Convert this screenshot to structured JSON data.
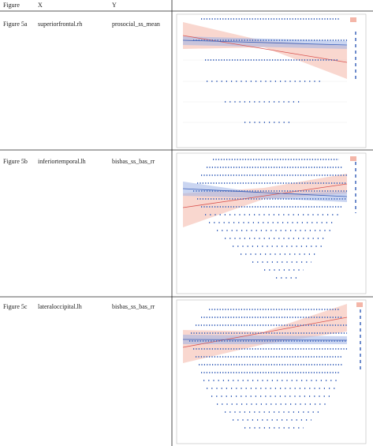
{
  "table": {
    "header": [
      "Figure",
      "X",
      "Y"
    ],
    "rows": [
      [
        "Figure 5a",
        "superiorfrontal.rh",
        "prosocial_ss_mean"
      ],
      [
        "Figure 5b",
        "inferiortemporal.lh",
        "bisbas_ss_bas_rr"
      ],
      [
        "Figure 5c",
        "lateraloccipital.lh",
        "bisbas_ss_bas_rr"
      ]
    ]
  }
}
